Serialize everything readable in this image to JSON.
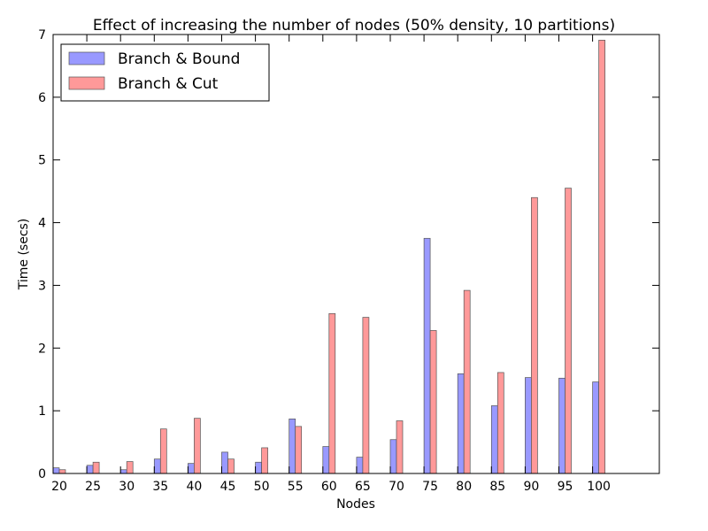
{
  "chart_data": {
    "type": "bar",
    "title": "Effect of increasing the number of nodes (50% density, 10 partitions)",
    "xlabel": "Nodes",
    "ylabel": "Time (secs)",
    "categories": [
      "20",
      "25",
      "30",
      "35",
      "40",
      "45",
      "50",
      "55",
      "60",
      "65",
      "70",
      "75",
      "80",
      "85",
      "90",
      "95",
      "100"
    ],
    "ylim": [
      0,
      7
    ],
    "yticks": [
      "0",
      "1",
      "2",
      "3",
      "4",
      "5",
      "6",
      "7"
    ],
    "grid": false,
    "legend_position": "top-left",
    "series": [
      {
        "name": "Branch & Bound",
        "color": "#9999ff",
        "values": [
          0.09,
          0.13,
          0.06,
          0.23,
          0.16,
          0.34,
          0.18,
          0.87,
          0.43,
          0.26,
          0.54,
          3.75,
          1.59,
          1.08,
          1.53,
          1.52,
          1.46
        ]
      },
      {
        "name": "Branch & Cut",
        "color": "#ff9999",
        "values": [
          0.06,
          0.18,
          0.19,
          0.71,
          0.88,
          0.23,
          0.41,
          0.75,
          2.55,
          2.49,
          0.84,
          2.28,
          2.92,
          1.61,
          4.4,
          4.55,
          6.91
        ]
      }
    ]
  }
}
